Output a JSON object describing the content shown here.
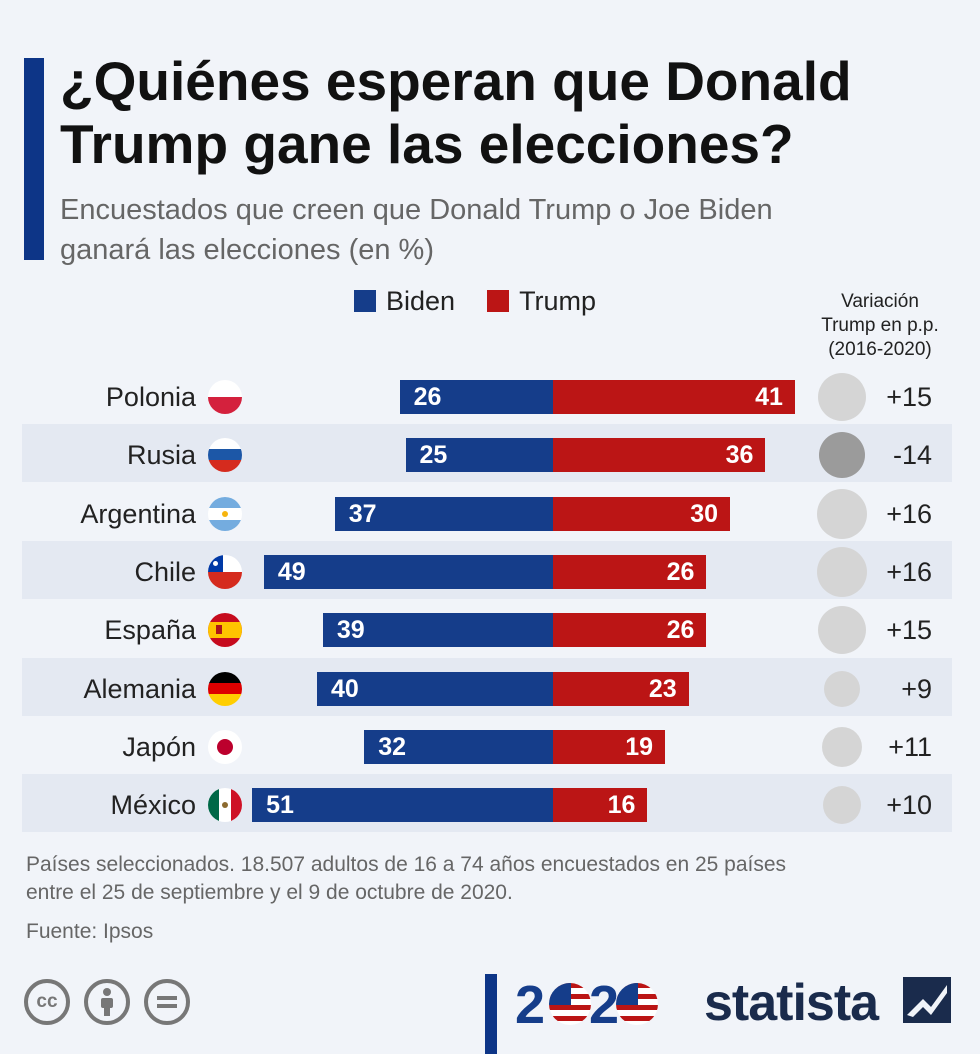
{
  "title": "¿Quiénes esperan que Donald Trump gane las elecciones?",
  "subtitle": "Encuestados que creen que Donald Trump o Joe Biden ganará las elecciones (en %)",
  "legend": {
    "biden": "Biden",
    "trump": "Trump"
  },
  "variation_header": "Variación\nTrump en p.p.\n(2016-2020)",
  "colors": {
    "biden": "#153d8a",
    "trump": "#bb1515",
    "accent": "#0d3587",
    "circle_pos": "#d5d5d5",
    "circle_neg": "#9b9b9b"
  },
  "chart_data": {
    "type": "bar",
    "categories": [
      "Polonia",
      "Rusia",
      "Argentina",
      "Chile",
      "España",
      "Alemania",
      "Japón",
      "México"
    ],
    "series": [
      {
        "name": "Biden",
        "values": [
          26,
          25,
          37,
          49,
          39,
          40,
          32,
          51
        ]
      },
      {
        "name": "Trump",
        "values": [
          41,
          36,
          30,
          26,
          26,
          23,
          19,
          16
        ]
      }
    ],
    "variation": [
      15,
      -14,
      16,
      16,
      15,
      9,
      11,
      10
    ],
    "variation_labels": [
      "+15",
      "-14",
      "+16",
      "+16",
      "+15",
      "+9",
      "+11",
      "+10"
    ],
    "flags": [
      "poland-flag-icon",
      "russia-flag-icon",
      "argentina-flag-icon",
      "chile-flag-icon",
      "spain-flag-icon",
      "germany-flag-icon",
      "japan-flag-icon",
      "mexico-flag-icon"
    ],
    "orientation": "horizontal-diverging",
    "legend_position": "top"
  },
  "footer": {
    "note": "Países seleccionados. 18.507 adultos de 16 a 74 años encuestados en 25 países entre el 25 de septiembre y el 9 de octubre de 2020.",
    "source": "Fuente: Ipsos",
    "year": "2020",
    "brand": "statista",
    "cc_icons": [
      "cc-icon",
      "attribution-icon",
      "no-derivatives-icon"
    ]
  }
}
